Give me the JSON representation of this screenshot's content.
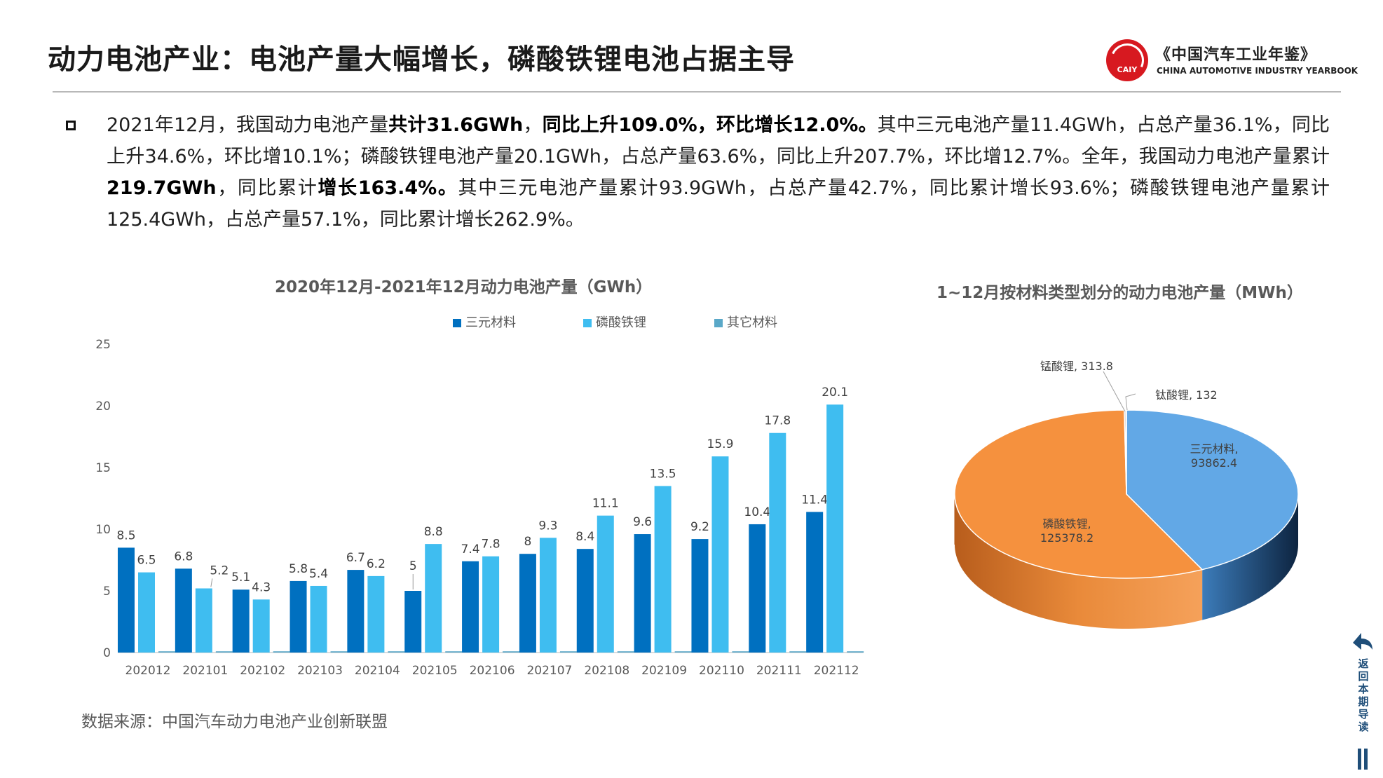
{
  "header": {
    "title": "动力电池产业：电池产量大幅增长，磷酸铁锂电池占据主导",
    "logo_mark": "CAIY",
    "logo_cn": "《中国汽车工业年鉴》",
    "logo_en": "CHINA AUTOMOTIVE INDUSTRY YEARBOOK"
  },
  "paragraph": {
    "p1": "2021年12月，我国动力电池产量",
    "b1": "共计31.6GWh",
    "p2": "，",
    "b2": "同比上升109.0%，环比增长12.0%。",
    "p3": "其中三元电池产量11.4GWh，占总产量36.1%，同比上升34.6%，环比增10.1%；磷酸铁锂电池产量20.1GWh，占总产量63.6%，同比上升207.7%，环比增12.7%。全年，我国动力电池产量累计",
    "b3": "219.7GWh",
    "p4": "，同比累计",
    "b4": "增长163.4%。",
    "p5": "其中三元电池产量累计93.9GWh，占总产量42.7%，同比累计增长93.6%；磷酸铁锂电池产量累计125.4GWh，占总产量57.1%，同比累计增长262.9%。"
  },
  "bar_chart_title": "2020年12月-2021年12月动力电池产量（GWh）",
  "pie_chart_title": "1~12月按材料类型划分的动力电池产量（MWh）",
  "source": "数据来源：中国汽车动力电池产业创新联盟",
  "side_nav": {
    "label": "返回本期导读",
    "arrow_icon": "back-arrow-icon"
  },
  "colors": {
    "ternary": "#0070c0",
    "lfp": "#3fbdf0",
    "other": "#5aa8c8",
    "pie_ternary": "#62a8e6",
    "pie_lfp": "#f5913e"
  },
  "chart_data": [
    {
      "type": "bar",
      "categories": [
        "202012",
        "202101",
        "202102",
        "202103",
        "202104",
        "202105",
        "202106",
        "202107",
        "202108",
        "202109",
        "202110",
        "202111",
        "202112"
      ],
      "series": [
        {
          "name": "三元材料",
          "values": [
            8.5,
            6.8,
            5.1,
            5.8,
            6.7,
            5,
            7.4,
            8,
            8.4,
            9.6,
            9.2,
            10.4,
            11.4
          ]
        },
        {
          "name": "磷酸铁锂",
          "values": [
            6.5,
            5.2,
            4.3,
            5.4,
            6.2,
            8.8,
            7.8,
            9.3,
            11.1,
            13.5,
            15.9,
            17.8,
            20.1
          ]
        },
        {
          "name": "其它材料",
          "values": [
            0.1,
            0.1,
            0.1,
            0.1,
            0.1,
            0.1,
            0.1,
            0.1,
            0.1,
            0.1,
            0.1,
            0.1,
            0.1
          ]
        }
      ],
      "yticks": [
        "0",
        "5",
        "10",
        "15",
        "20",
        "25"
      ],
      "ylim": [
        0,
        25
      ],
      "legend": "top"
    },
    {
      "type": "pie",
      "slices": [
        {
          "label": "三元材料",
          "value": 93862.4,
          "text": "三元材料,",
          "value_text": "93862.4"
        },
        {
          "label": "磷酸铁锂",
          "value": 125378.2,
          "text": "磷酸铁锂,",
          "value_text": "125378.2"
        },
        {
          "label": "锰酸锂",
          "value": 313.8,
          "text": "锰酸锂, 313.8"
        },
        {
          "label": "钛酸锂",
          "value": 132,
          "text": "钛酸锂, 132"
        }
      ]
    }
  ]
}
